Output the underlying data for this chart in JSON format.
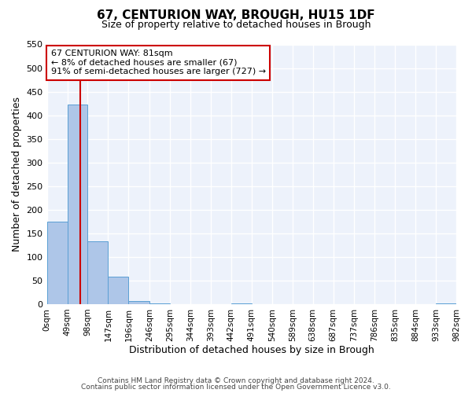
{
  "title": "67, CENTURION WAY, BROUGH, HU15 1DF",
  "subtitle": "Size of property relative to detached houses in Brough",
  "xlabel": "Distribution of detached houses by size in Brough",
  "ylabel": "Number of detached properties",
  "bin_edges": [
    0,
    49,
    98,
    147,
    196,
    246,
    295,
    344,
    393,
    442,
    491,
    540,
    589,
    638,
    687,
    737,
    786,
    835,
    884,
    933,
    982
  ],
  "bin_labels": [
    "0sqm",
    "49sqm",
    "98sqm",
    "147sqm",
    "196sqm",
    "246sqm",
    "295sqm",
    "344sqm",
    "393sqm",
    "442sqm",
    "491sqm",
    "540sqm",
    "589sqm",
    "638sqm",
    "687sqm",
    "737sqm",
    "786sqm",
    "835sqm",
    "884sqm",
    "933sqm",
    "982sqm"
  ],
  "counts": [
    175,
    422,
    133,
    58,
    7,
    2,
    0,
    0,
    0,
    1,
    0,
    0,
    0,
    0,
    0,
    0,
    0,
    0,
    0,
    1
  ],
  "bar_color": "#aec6e8",
  "bar_edge_color": "#5a9fd4",
  "property_line_x": 81,
  "property_line_color": "#cc0000",
  "ylim": [
    0,
    550
  ],
  "yticks": [
    0,
    50,
    100,
    150,
    200,
    250,
    300,
    350,
    400,
    450,
    500,
    550
  ],
  "annotation_box_text_line1": "67 CENTURION WAY: 81sqm",
  "annotation_box_text_line2": "← 8% of detached houses are smaller (67)",
  "annotation_box_text_line3": "91% of semi-detached houses are larger (727) →",
  "annotation_box_color": "#cc0000",
  "footer_line1": "Contains HM Land Registry data © Crown copyright and database right 2024.",
  "footer_line2": "Contains public sector information licensed under the Open Government Licence v3.0.",
  "background_color": "#edf2fb",
  "grid_color": "#ffffff",
  "fig_background": "#ffffff"
}
